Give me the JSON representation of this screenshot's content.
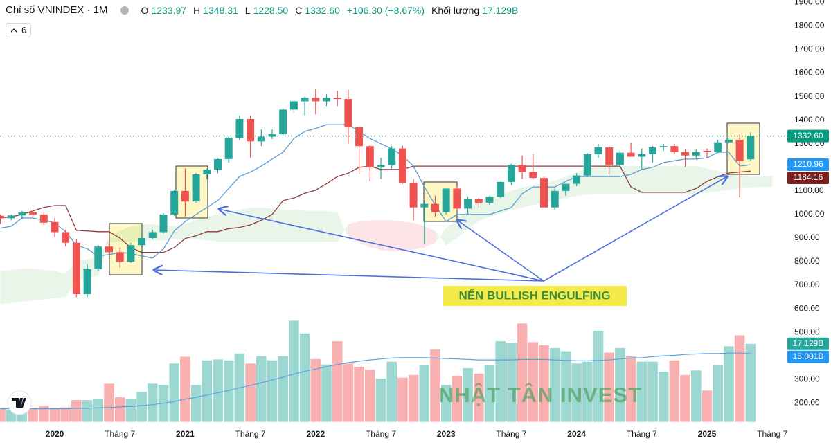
{
  "header": {
    "symbol": "Chỉ số VNINDEX · 1M",
    "ohlc": [
      {
        "key": "O",
        "text": "1233.97"
      },
      {
        "key": "H",
        "text": "1348.31"
      },
      {
        "key": "L",
        "text": "1228.50"
      },
      {
        "key": "C",
        "text": "1332.60"
      }
    ],
    "change": "+106.30 (+8.67%)",
    "volume_key": "Khối lượng",
    "volume_text": "17.129B",
    "indicators": "6"
  },
  "chart_data": {
    "type": "candlestick",
    "categories": [
      null,
      null,
      null,
      null,
      null,
      "2020",
      null,
      null,
      null,
      null,
      null,
      "Tháng 7",
      null,
      null,
      null,
      null,
      null,
      "2021",
      null,
      null,
      null,
      null,
      null,
      "Tháng 7",
      null,
      null,
      null,
      null,
      null,
      "2022",
      null,
      null,
      null,
      null,
      null,
      "Tháng 7",
      null,
      null,
      null,
      null,
      null,
      "2023",
      null,
      null,
      null,
      null,
      null,
      "Tháng 7",
      null,
      null,
      null,
      null,
      null,
      "2024",
      null,
      null,
      null,
      null,
      null,
      "Tháng 7",
      null,
      null,
      null,
      null,
      null,
      "2025",
      null,
      null,
      null,
      null,
      null,
      "Tháng 7"
    ],
    "ohlc": {
      "up_color": "#26a69a",
      "down_color": "#ef5350",
      "open": [
        995,
        984,
        996,
        1010,
        1000,
        968,
        925,
        880,
        662,
        768,
        864,
        840,
        800,
        870,
        900,
        925,
        1000,
        1100,
        1055,
        1170,
        1190,
        1235,
        1325,
        1405,
        1310,
        1330,
        1340,
        1445,
        1480,
        1495,
        1480,
        1495,
        1490,
        1370,
        1290,
        1200,
        1210,
        1280,
        1135,
        1030,
        1045,
        1010,
        1110,
        1025,
        1065,
        1050,
        1075,
        1138,
        1210,
        1180,
        1155,
        1030,
        1100,
        1130,
        1165,
        1255,
        1285,
        1210,
        1262,
        1245,
        1255,
        1285,
        1290,
        1265,
        1250,
        1270,
        1265,
        1306,
        1317,
        1233.97,
        null,
        null
      ],
      "high": [
        1000,
        1000,
        1015,
        1025,
        1008,
        985,
        935,
        895,
        790,
        870,
        890,
        860,
        880,
        910,
        935,
        1005,
        1105,
        1195,
        1175,
        1195,
        1240,
        1330,
        1420,
        1420,
        1360,
        1360,
        1450,
        1485,
        1500,
        1535,
        1510,
        1525,
        1530,
        1375,
        1295,
        1240,
        1290,
        1290,
        1150,
        1060,
        1080,
        1110,
        1120,
        1075,
        1070,
        1080,
        1140,
        1215,
        1250,
        1255,
        1160,
        1110,
        1130,
        1175,
        1260,
        1300,
        1290,
        1275,
        1305,
        1280,
        1290,
        1300,
        1300,
        1275,
        1275,
        1280,
        1315,
        1335,
        1340,
        1348.31,
        null,
        null
      ],
      "low": [
        960,
        975,
        980,
        985,
        955,
        905,
        865,
        650,
        650,
        760,
        830,
        775,
        795,
        865,
        895,
        920,
        995,
        990,
        1050,
        1150,
        1175,
        1220,
        1315,
        1240,
        1290,
        1320,
        1335,
        1430,
        1420,
        1425,
        1460,
        1460,
        1300,
        1170,
        1140,
        1150,
        1195,
        1130,
        975,
        875,
        990,
        1000,
        1020,
        1000,
        1030,
        1040,
        1070,
        1125,
        1150,
        1150,
        1030,
        1020,
        1080,
        1120,
        1160,
        1240,
        1170,
        1205,
        1245,
        1190,
        1220,
        1270,
        1255,
        1200,
        1235,
        1240,
        1260,
        1300,
        1073,
        1228.5,
        null,
        null
      ],
      "close": [
        984,
        996,
        1009,
        1000,
        965,
        925,
        880,
        662,
        768,
        864,
        840,
        800,
        870,
        900,
        925,
        1000,
        1100,
        1055,
        1170,
        1190,
        1235,
        1325,
        1405,
        1310,
        1330,
        1340,
        1445,
        1480,
        1495,
        1480,
        1495,
        1490,
        1370,
        1290,
        1200,
        1210,
        1280,
        1135,
        1030,
        1045,
        1010,
        1110,
        1025,
        1065,
        1050,
        1075,
        1138,
        1210,
        1180,
        1155,
        1030,
        1100,
        1130,
        1165,
        1255,
        1285,
        1210,
        1262,
        1245,
        1255,
        1285,
        1290,
        1265,
        1250,
        1265,
        1265,
        1306,
        1317,
        1226,
        1332.6,
        null,
        null
      ]
    },
    "lines": [
      {
        "color": "#5b9bd5",
        "values": [
          942,
          950,
          985,
          985,
          975,
          965,
          927,
          870,
          854,
          824,
          830,
          839,
          835,
          824,
          815,
          854,
          930,
          970,
          1000,
          1030,
          1059,
          1110,
          1161,
          1180,
          1205,
          1235,
          1264,
          1322,
          1352,
          1365,
          1381,
          1381,
          1381,
          1352,
          1322,
          1300,
          1279,
          1250,
          1205,
          1117,
          1040,
          970,
          1000,
          1000,
          1000,
          1000,
          1015,
          1030,
          1088,
          1117,
          1117,
          1117,
          1140,
          1161,
          1161,
          1161,
          1161,
          1161,
          1170,
          1191,
          1200,
          1220,
          1228,
          1235,
          1235,
          1240,
          1264,
          1264,
          1205,
          1210.96,
          null,
          null
        ]
      },
      {
        "color": "#8e3b3b",
        "values": [
          986,
          990,
          1000,
          1015,
          1030,
          1038,
          1038,
          933,
          930,
          927,
          927,
          900,
          860,
          839,
          839,
          839,
          860,
          898,
          910,
          927,
          927,
          940,
          945,
          956,
          975,
          1000,
          1059,
          1070,
          1090,
          1103,
          1130,
          1161,
          1175,
          1200,
          1205,
          1191,
          1191,
          1191,
          1205,
          1205,
          1205,
          1205,
          1205,
          1205,
          1205,
          1205,
          1205,
          1205,
          1205,
          1205,
          1205,
          1205,
          1205,
          1205,
          1205,
          1205,
          1205,
          1205,
          1117,
          1094,
          1094,
          1094,
          1094,
          1094,
          1110,
          1141,
          1160,
          1176,
          1180,
          1184.16,
          null,
          null
        ]
      }
    ],
    "cloud": {
      "up_color": "rgba(76,175,80,0.13)",
      "down_color": "rgba(242,54,69,0.13)",
      "span_a": [
        760,
        765,
        770,
        770,
        765,
        760,
        750,
        800,
        810,
        820,
        900,
        930,
        950,
        958,
        958,
        955,
        950,
        960,
        975,
        990,
        1000,
        1010,
        1020,
        1030,
        1030,
        1025,
        1020,
        1020,
        1015,
        1015,
        1015,
        1010,
        900,
        880,
        860,
        850,
        845,
        845,
        850,
        860,
        880,
        942,
        980,
        1020,
        1059,
        1070,
        1085,
        1100,
        1115,
        1125,
        1132,
        1145,
        1160,
        1180,
        1195,
        1205,
        1205,
        1205,
        1205,
        1205,
        1205,
        1205,
        1205,
        1205,
        1205,
        1195,
        1185,
        1175,
        1165,
        1161,
        1161,
        1165
      ],
      "span_b": [
        620,
        625,
        630,
        635,
        640,
        645,
        650,
        720,
        730,
        740,
        880,
        885,
        885,
        885,
        890,
        890,
        895,
        895,
        895,
        890,
        885,
        885,
        885,
        885,
        885,
        885,
        885,
        885,
        885,
        885,
        885,
        885,
        960,
        970,
        975,
        975,
        975,
        970,
        965,
        950,
        930,
        870,
        900,
        940,
        971,
        990,
        1005,
        1020,
        1030,
        1040,
        1050,
        1060,
        1070,
        1078,
        1085,
        1088,
        1088,
        1088,
        1088,
        1088,
        1088,
        1088,
        1088,
        1088,
        1088,
        1092,
        1098,
        1105,
        1110,
        1115,
        1117,
        1117
      ]
    },
    "volume": {
      "axis": "y2",
      "values": [
        2.9,
        2.6,
        2.2,
        2.9,
        3.6,
        2.9,
        3.2,
        4.8,
        4.8,
        5.1,
        8.4,
        5.4,
        5.1,
        6.6,
        8.4,
        8.1,
        12.8,
        14.3,
        8.1,
        13.5,
        13.7,
        13.5,
        15.0,
        12.8,
        14.4,
        13.5,
        14.4,
        22.2,
        19.4,
        13.8,
        12.6,
        17.7,
        12.8,
        12.1,
        11.5,
        9.5,
        13.2,
        9.7,
        10.3,
        12.4,
        15.9,
        8.1,
        10.1,
        11.8,
        10.6,
        12.5,
        17.7,
        17.4,
        21.6,
        17.5,
        16.8,
        16.2,
        15.5,
        12.8,
        13.2,
        20.0,
        15.2,
        16.2,
        14.4,
        13.2,
        13.2,
        11.0,
        13.5,
        10.3,
        11.3,
        6.9,
        12.5,
        16.6,
        19.0,
        17.129,
        null,
        null
      ],
      "ma": {
        "color": "#5ba4e0",
        "values": [
          2.9,
          2.9,
          2.9,
          2.9,
          2.9,
          2.9,
          2.9,
          3.0,
          3.0,
          3.1,
          3.2,
          3.3,
          3.4,
          3.6,
          3.8,
          4.1,
          4.5,
          5.0,
          5.4,
          5.9,
          6.4,
          6.9,
          7.5,
          8.0,
          8.6,
          9.2,
          9.8,
          10.5,
          11.1,
          11.6,
          12.1,
          12.6,
          13.0,
          13.3,
          13.6,
          13.8,
          14.0,
          14.1,
          14.1,
          14.1,
          14.0,
          13.9,
          13.8,
          13.7,
          13.6,
          13.6,
          13.6,
          13.6,
          13.7,
          13.7,
          13.7,
          13.6,
          13.5,
          13.4,
          13.4,
          13.5,
          13.6,
          13.8,
          14.0,
          14.1,
          14.3,
          14.5,
          14.6,
          14.8,
          14.9,
          15.0,
          15.0,
          15.1,
          15.1,
          15.001,
          null,
          null
        ]
      }
    },
    "ylim": [
      110,
      1910
    ],
    "yticks": [
      {
        "value": 200,
        "label": "200.00"
      },
      {
        "value": 300,
        "label": "300.00"
      },
      {
        "value": 400,
        "label": "400.00"
      },
      {
        "value": 500,
        "label": "500.00"
      },
      {
        "value": 600,
        "label": "600.00"
      },
      {
        "value": 700,
        "label": "700.00"
      },
      {
        "value": 800,
        "label": "800.00"
      },
      {
        "value": 900,
        "label": "900.00"
      },
      {
        "value": 1000,
        "label": "1000.00"
      },
      {
        "value": 1100,
        "label": "1100.00"
      },
      {
        "value": 1200,
        "label": "1200.00"
      },
      {
        "value": 1300,
        "label": "1300.00"
      },
      {
        "value": 1400,
        "label": "1400.00"
      },
      {
        "value": 1500,
        "label": "1500.00"
      },
      {
        "value": 1600,
        "label": "1600.00"
      },
      {
        "value": 1700,
        "label": "1700.00"
      },
      {
        "value": 1800,
        "label": "1800.00"
      },
      {
        "value": 1900,
        "label": "1900.00"
      }
    ],
    "y2lim": [
      -0.5,
      92.5
    ],
    "grid": false,
    "price_tags": [
      {
        "value": 1332.6,
        "label": "1332.60",
        "color": "#089981"
      },
      {
        "value": 1210.96,
        "label": "1210.96",
        "color": "#2196f3"
      },
      {
        "value": 1184.16,
        "label": "1184.16",
        "color": "#7a1f1f"
      },
      {
        "value": 17.129,
        "label": "17.129B",
        "color": "#26a69a",
        "axis": "y2"
      },
      {
        "value": 15.001,
        "label": "15.001B",
        "color": "#2196f3",
        "axis": "y2"
      }
    ],
    "annotation": "NẾN BULLISH ENGULFING",
    "watermark": "NHẬT TÂN INVEST"
  }
}
